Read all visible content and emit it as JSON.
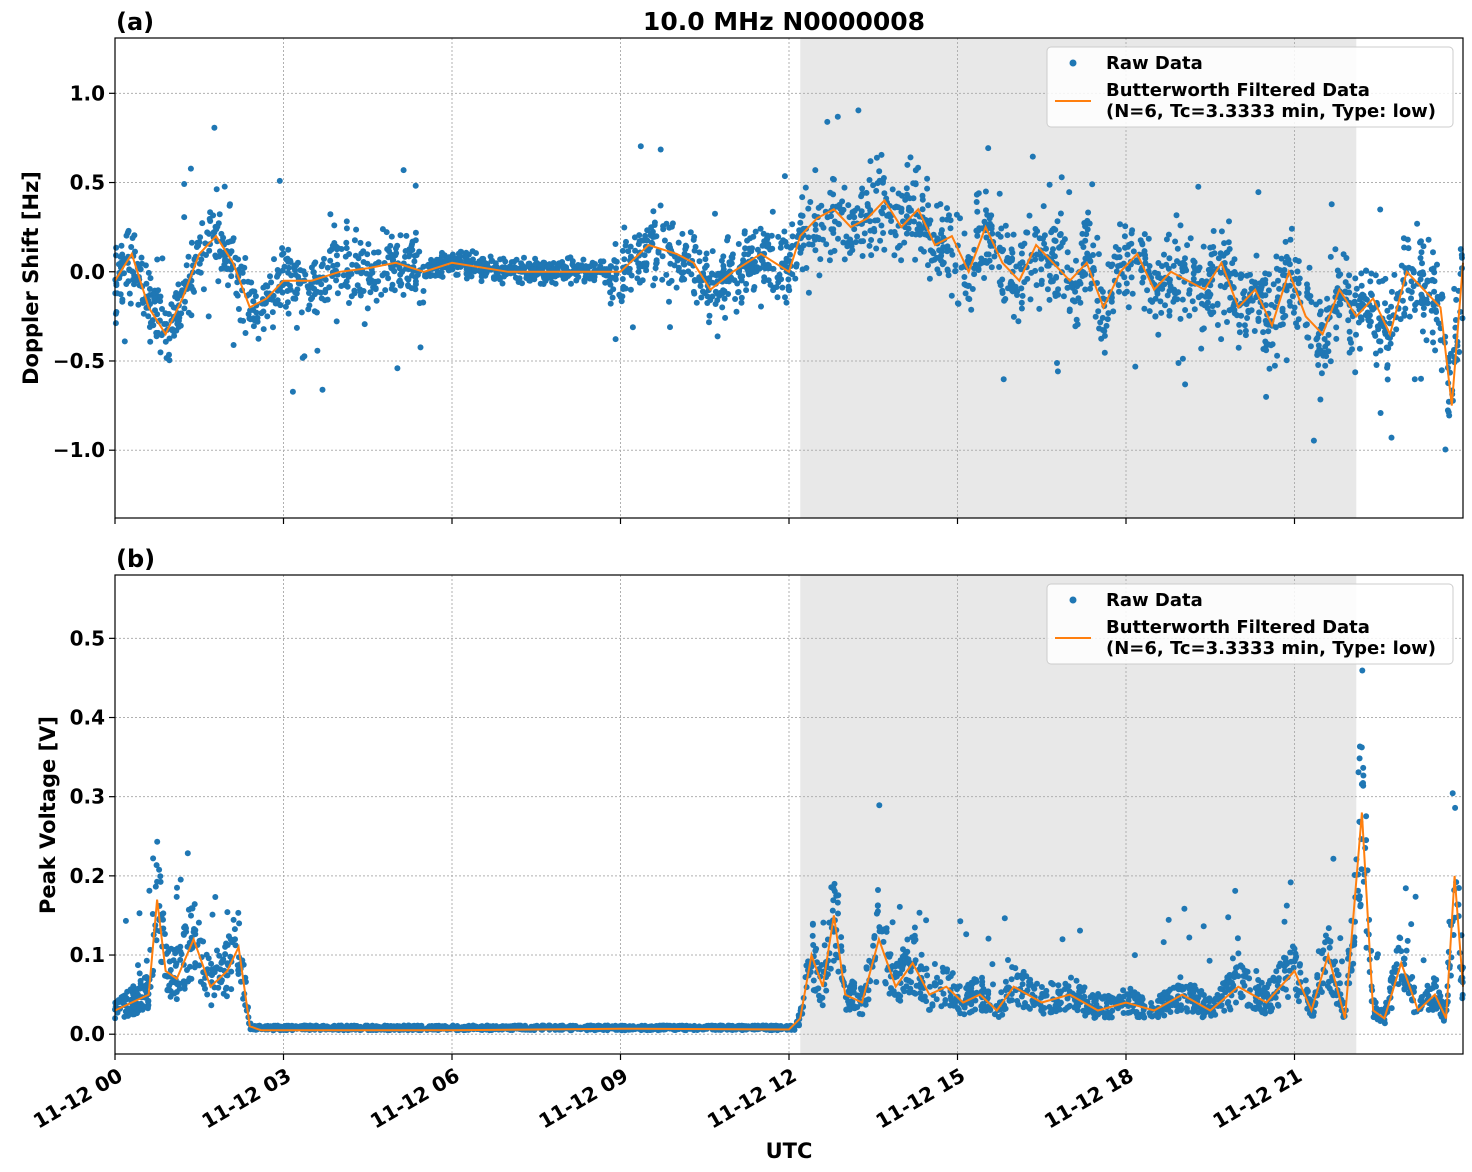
{
  "figure": {
    "title": "10.0 MHz N0000008",
    "xlabel": "UTC"
  },
  "colors": {
    "raw": "#1f77b4",
    "filtered": "#ff7f0e",
    "shade": "#e8e8e8"
  },
  "chart_data": [
    {
      "type": "scatter",
      "panel_label": "(a)",
      "ylabel": "Doppler Shift [Hz]",
      "xlim_hours": [
        0,
        24
      ],
      "ylim": [
        -1.38,
        1.31
      ],
      "yticks": [
        1.0,
        0.5,
        0.0,
        -0.5,
        -1.0
      ],
      "ytick_labels": [
        "1.0",
        "0.5",
        "0.0",
        "−0.5",
        "−1.0"
      ],
      "xticks_hours": [
        0,
        3,
        6,
        9,
        12,
        15,
        18,
        21
      ],
      "xtick_labels": [
        "11-12 00",
        "11-12 03",
        "11-12 06",
        "11-12 09",
        "11-12 12",
        "11-12 15",
        "11-12 18",
        "11-12 21"
      ],
      "shaded_region_hours": [
        12.2,
        22.1
      ],
      "grid": true,
      "legend_position": "top-right",
      "legend": {
        "raw": "Raw Data",
        "filtered_line1": "Butterworth Filtered Data",
        "filtered_line2": "(N=6, Tc=3.3333 min, Type: low)"
      },
      "series": [
        {
          "name": "Butterworth Filtered Data",
          "x_hours": [
            0,
            0.3,
            0.6,
            0.9,
            1.2,
            1.5,
            1.8,
            2.1,
            2.4,
            2.7,
            3.0,
            3.5,
            4.0,
            4.5,
            5.0,
            5.5,
            6.0,
            7.0,
            8.0,
            8.5,
            9.0,
            9.5,
            10.0,
            10.3,
            10.6,
            11.0,
            11.5,
            12.0,
            12.2,
            12.5,
            12.8,
            13.1,
            13.4,
            13.7,
            14.0,
            14.3,
            14.6,
            14.9,
            15.2,
            15.5,
            15.8,
            16.1,
            16.4,
            16.7,
            17.0,
            17.3,
            17.6,
            17.9,
            18.2,
            18.5,
            18.8,
            19.1,
            19.4,
            19.7,
            20.0,
            20.3,
            20.6,
            20.9,
            21.2,
            21.5,
            21.8,
            22.1,
            22.4,
            22.7,
            23.0,
            23.3,
            23.6,
            23.8,
            24.0
          ],
          "y": [
            -0.05,
            0.1,
            -0.2,
            -0.35,
            -0.15,
            0.1,
            0.2,
            0.05,
            -0.2,
            -0.15,
            -0.05,
            -0.05,
            0.0,
            0.02,
            0.05,
            0.0,
            0.05,
            0.0,
            0.0,
            0.0,
            0.0,
            0.15,
            0.1,
            0.05,
            -0.1,
            0.0,
            0.1,
            0.0,
            0.2,
            0.3,
            0.35,
            0.25,
            0.3,
            0.4,
            0.25,
            0.35,
            0.15,
            0.2,
            0.0,
            0.25,
            0.05,
            -0.05,
            0.15,
            0.05,
            -0.05,
            0.05,
            -0.2,
            0.0,
            0.1,
            -0.1,
            0.0,
            -0.05,
            -0.1,
            0.05,
            -0.2,
            -0.1,
            -0.3,
            0.0,
            -0.25,
            -0.35,
            -0.1,
            -0.25,
            -0.15,
            -0.35,
            0.0,
            -0.1,
            -0.2,
            -0.75,
            0.05
          ]
        }
      ]
    },
    {
      "type": "scatter",
      "panel_label": "(b)",
      "ylabel": "Peak Voltage [V]",
      "xlim_hours": [
        0,
        24
      ],
      "ylim": [
        -0.025,
        0.58
      ],
      "yticks": [
        0.0,
        0.1,
        0.2,
        0.3,
        0.4,
        0.5
      ],
      "ytick_labels": [
        "0.0",
        "0.1",
        "0.2",
        "0.3",
        "0.4",
        "0.5"
      ],
      "xticks_hours": [
        0,
        3,
        6,
        9,
        12,
        15,
        18,
        21
      ],
      "xtick_labels": [
        "11-12 00",
        "11-12 03",
        "11-12 06",
        "11-12 09",
        "11-12 12",
        "11-12 15",
        "11-12 18",
        "11-12 21"
      ],
      "shaded_region_hours": [
        12.2,
        22.1
      ],
      "grid": true,
      "legend_position": "top-right",
      "legend": {
        "raw": "Raw Data",
        "filtered_line1": "Butterworth Filtered Data",
        "filtered_line2": "(N=6, Tc=3.3333 min, Type: low)"
      },
      "series": [
        {
          "name": "Butterworth Filtered Data",
          "x_hours": [
            0,
            0.3,
            0.6,
            0.75,
            0.9,
            1.1,
            1.4,
            1.7,
            2.0,
            2.2,
            2.4,
            2.6,
            3.0,
            6.0,
            9.0,
            12.0,
            12.2,
            12.4,
            12.6,
            12.8,
            13.0,
            13.3,
            13.6,
            13.9,
            14.2,
            14.5,
            14.8,
            15.1,
            15.4,
            15.7,
            16.0,
            16.5,
            17.0,
            17.5,
            18.0,
            18.5,
            19.0,
            19.5,
            20.0,
            20.5,
            21.0,
            21.3,
            21.6,
            21.9,
            22.2,
            22.4,
            22.6,
            22.9,
            23.2,
            23.5,
            23.7,
            23.85,
            24.0
          ],
          "y": [
            0.03,
            0.04,
            0.05,
            0.17,
            0.08,
            0.07,
            0.12,
            0.06,
            0.08,
            0.11,
            0.01,
            0.005,
            0.005,
            0.005,
            0.007,
            0.006,
            0.02,
            0.1,
            0.06,
            0.15,
            0.05,
            0.04,
            0.12,
            0.06,
            0.09,
            0.05,
            0.06,
            0.04,
            0.05,
            0.03,
            0.06,
            0.04,
            0.05,
            0.03,
            0.04,
            0.03,
            0.05,
            0.03,
            0.06,
            0.04,
            0.08,
            0.03,
            0.1,
            0.02,
            0.28,
            0.03,
            0.02,
            0.09,
            0.03,
            0.05,
            0.02,
            0.2,
            0.06
          ]
        }
      ]
    }
  ]
}
